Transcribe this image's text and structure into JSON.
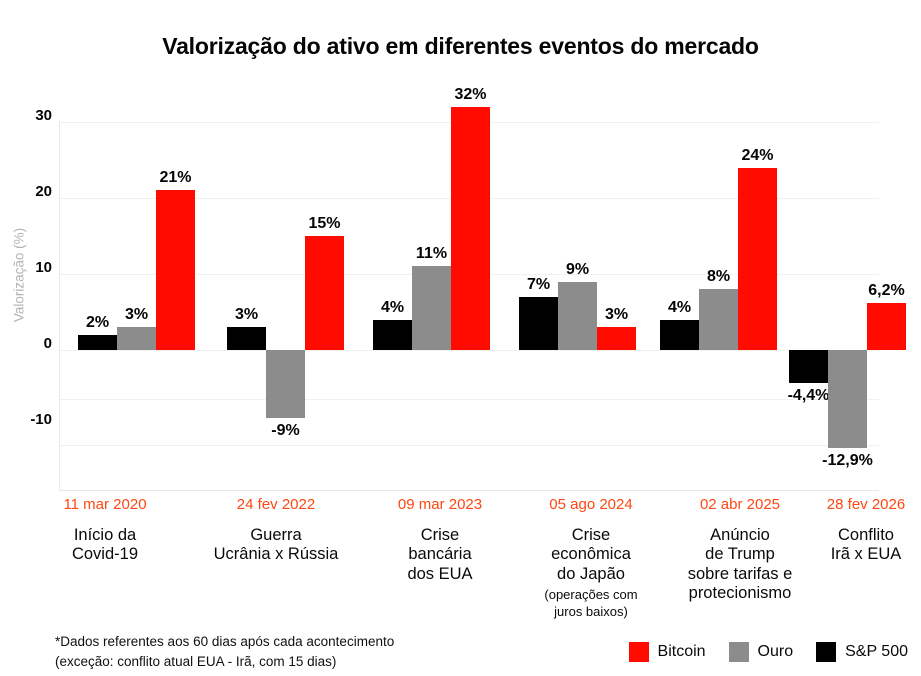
{
  "footnote": {
    "line1": "*Dados referentes aos 60 dias após cada acontecimento",
    "line2": "(exceção: conflito atual EUA - Irã, com 15 dias)"
  },
  "chart_data": {
    "type": "bar",
    "title": "Valorização do ativo em diferentes eventos do mercado",
    "ylabel": "Valorização (%)",
    "yticks": [
      30,
      20,
      10,
      0,
      -10
    ],
    "ylim": [
      -18,
      30
    ],
    "grid": true,
    "legend_position": "bottom-right",
    "date_color": "#FF4713",
    "categories": [
      {
        "date": "11 mar 2020",
        "name": "Início da\nCovid-19"
      },
      {
        "date": "24 fev 2022",
        "name": "Guerra\nUcrânia x Rússia"
      },
      {
        "date": "09 mar 2023",
        "name": "Crise\nbancária\ndos EUA"
      },
      {
        "date": "05 ago 2024",
        "name": "Crise\neconômica\ndo Japão",
        "note": "(operações com\njuros baixos)"
      },
      {
        "date": "02 abr 2025",
        "name": "Anúncio\nde Trump\nsobre tarifas e\nprotecionismo"
      },
      {
        "date": "28 fev 2026",
        "name": "Conflito\nIrã x EUA"
      }
    ],
    "series": [
      {
        "name": "S&P 500",
        "color": "#000000",
        "values": [
          2,
          3,
          4,
          7,
          4,
          -4.4
        ],
        "labels": [
          "2%",
          "3%",
          "4%",
          "7%",
          "4%",
          "-4,4%"
        ]
      },
      {
        "name": "Ouro",
        "color": "#8C8C8C",
        "values": [
          3,
          -9,
          11,
          9,
          8,
          -12.9
        ],
        "labels": [
          "3%",
          "-9%",
          "11%",
          "9%",
          "8%",
          "-12,9%"
        ]
      },
      {
        "name": "Bitcoin",
        "color": "#FF0B00",
        "values": [
          21,
          15,
          32,
          3,
          24,
          6.2
        ],
        "labels": [
          "21%",
          "15%",
          "32%",
          "3%",
          "24%",
          "6,2%"
        ]
      }
    ],
    "legend": [
      {
        "label": "Bitcoin",
        "color": "#FF0B00"
      },
      {
        "label": "Ouro",
        "color": "#8C8C8C"
      },
      {
        "label": "S&P 500",
        "color": "#000000"
      }
    ]
  }
}
